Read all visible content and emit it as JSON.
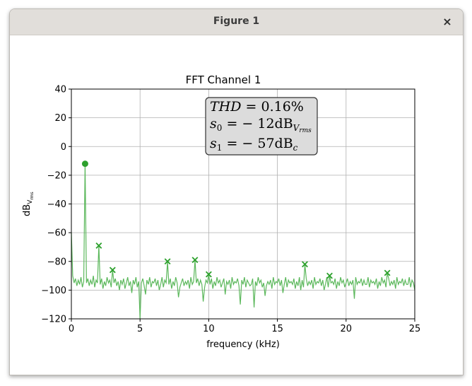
{
  "window": {
    "title": "Figure 1",
    "close_glyph": "×"
  },
  "annotation": {
    "line1_main": "THD",
    "line1_value": " = 0.16%",
    "line2_main": "s",
    "line2_sub": "0",
    "line2_value": " = − 12dB",
    "line2_unit_sub": "V",
    "line2_unit_subsub": "rms",
    "line3_main": "s",
    "line3_sub": "1",
    "line3_value": " = − 57dB",
    "line3_unit_sub": "c"
  },
  "chart_data": {
    "type": "line",
    "title": "FFT Channel 1",
    "xlabel": "frequency (kHz)",
    "ylabel_main": "dB",
    "ylabel_sub": "V",
    "ylabel_subsub": "rms",
    "xlim": [
      0,
      25
    ],
    "ylim": [
      -120,
      40
    ],
    "xticks": [
      0,
      5,
      10,
      15,
      20,
      25
    ],
    "yticks": [
      -120,
      -100,
      -80,
      -60,
      -40,
      -20,
      0,
      20,
      40
    ],
    "grid": true,
    "line_color": "#5cb85c",
    "marker_color": "#2ca02c",
    "fundamental": {
      "x": 1.0,
      "y": -12
    },
    "harmonics": [
      {
        "x": 2.0,
        "y": -69
      },
      {
        "x": 3.0,
        "y": -86
      },
      {
        "x": 7.0,
        "y": -80
      },
      {
        "x": 9.0,
        "y": -79
      },
      {
        "x": 10.0,
        "y": -89
      },
      {
        "x": 17.0,
        "y": -82
      },
      {
        "x": 18.8,
        "y": -90
      },
      {
        "x": 23.0,
        "y": -88
      }
    ],
    "spectrum": {
      "x": [
        0,
        0.1,
        0.2,
        0.3,
        0.4,
        0.5,
        0.6,
        0.7,
        0.8,
        0.9,
        1.0,
        1.1,
        1.2,
        1.3,
        1.4,
        1.5,
        1.6,
        1.7,
        1.8,
        1.9,
        2.0,
        2.1,
        2.2,
        2.3,
        2.4,
        2.5,
        2.6,
        2.7,
        2.8,
        2.9,
        3.0,
        3.1,
        3.2,
        3.3,
        3.4,
        3.5,
        3.6,
        3.7,
        3.8,
        3.9,
        4.0,
        4.1,
        4.2,
        4.3,
        4.4,
        4.5,
        4.6,
        4.7,
        4.8,
        4.9,
        5.0,
        5.1,
        5.2,
        5.3,
        5.4,
        5.5,
        5.6,
        5.7,
        5.8,
        5.9,
        6.0,
        6.1,
        6.2,
        6.3,
        6.4,
        6.5,
        6.6,
        6.7,
        6.8,
        6.9,
        7.0,
        7.1,
        7.2,
        7.3,
        7.4,
        7.5,
        7.6,
        7.7,
        7.8,
        7.9,
        8.0,
        8.1,
        8.2,
        8.3,
        8.4,
        8.5,
        8.6,
        8.7,
        8.8,
        8.9,
        9.0,
        9.1,
        9.2,
        9.3,
        9.4,
        9.5,
        9.6,
        9.7,
        9.8,
        9.9,
        10.0,
        10.1,
        10.2,
        10.3,
        10.4,
        10.5,
        10.6,
        10.7,
        10.8,
        10.9,
        11.0,
        11.1,
        11.2,
        11.3,
        11.4,
        11.5,
        11.6,
        11.7,
        11.8,
        11.9,
        12.0,
        12.1,
        12.2,
        12.3,
        12.4,
        12.5,
        12.6,
        12.7,
        12.8,
        12.9,
        13.0,
        13.1,
        13.2,
        13.3,
        13.4,
        13.5,
        13.6,
        13.7,
        13.8,
        13.9,
        14.0,
        14.1,
        14.2,
        14.3,
        14.4,
        14.5,
        14.6,
        14.7,
        14.8,
        14.9,
        15.0,
        15.1,
        15.2,
        15.3,
        15.4,
        15.5,
        15.6,
        15.7,
        15.8,
        15.9,
        16.0,
        16.1,
        16.2,
        16.3,
        16.4,
        16.5,
        16.6,
        16.7,
        16.8,
        16.9,
        17.0,
        17.1,
        17.2,
        17.3,
        17.4,
        17.5,
        17.6,
        17.7,
        17.8,
        17.9,
        18.0,
        18.1,
        18.2,
        18.3,
        18.4,
        18.5,
        18.6,
        18.7,
        18.8,
        18.9,
        19.0,
        19.1,
        19.2,
        19.3,
        19.4,
        19.5,
        19.6,
        19.7,
        19.8,
        19.9,
        20.0,
        20.1,
        20.2,
        20.3,
        20.4,
        20.5,
        20.6,
        20.7,
        20.8,
        20.9,
        21.0,
        21.1,
        21.2,
        21.3,
        21.4,
        21.5,
        21.6,
        21.7,
        21.8,
        21.9,
        22.0,
        22.1,
        22.2,
        22.3,
        22.4,
        22.5,
        22.6,
        22.7,
        22.8,
        22.9,
        23.0,
        23.1,
        23.2,
        23.3,
        23.4,
        23.5,
        23.6,
        23.7,
        23.8,
        23.9,
        24.0,
        24.1,
        24.2,
        24.3,
        24.4,
        24.5,
        24.6,
        24.7,
        24.8,
        24.9,
        25.0
      ],
      "y": [
        -60,
        -90,
        -95,
        -92,
        -97,
        -93,
        -96,
        -91,
        -98,
        -94,
        -12,
        -95,
        -92,
        -97,
        -93,
        -96,
        -90,
        -98,
        -93,
        -95,
        -69,
        -96,
        -92,
        -99,
        -94,
        -97,
        -91,
        -95,
        -93,
        -98,
        -86,
        -95,
        -92,
        -97,
        -94,
        -100,
        -93,
        -96,
        -92,
        -99,
        -95,
        -91,
        -97,
        -94,
        -102,
        -93,
        -96,
        -91,
        -98,
        -94,
        -120,
        -95,
        -92,
        -97,
        -103,
        -93,
        -96,
        -91,
        -98,
        -94,
        -95,
        -92,
        -97,
        -93,
        -100,
        -96,
        -91,
        -98,
        -93,
        -95,
        -80,
        -96,
        -92,
        -99,
        -94,
        -97,
        -91,
        -95,
        -105,
        -98,
        -95,
        -92,
        -97,
        -94,
        -96,
        -93,
        -99,
        -91,
        -96,
        -94,
        -79,
        -95,
        -92,
        -97,
        -93,
        -96,
        -108,
        -98,
        -93,
        -95,
        -89,
        -96,
        -92,
        -99,
        -94,
        -97,
        -91,
        -95,
        -93,
        -98,
        -95,
        -92,
        -103,
        -94,
        -96,
        -93,
        -99,
        -91,
        -96,
        -94,
        -95,
        -92,
        -97,
        -110,
        -93,
        -96,
        -91,
        -98,
        -93,
        -95,
        -97,
        -96,
        -92,
        -112,
        -94,
        -97,
        -91,
        -95,
        -93,
        -98,
        -95,
        -104,
        -97,
        -94,
        -96,
        -93,
        -99,
        -91,
        -96,
        -94,
        -95,
        -92,
        -97,
        -93,
        -102,
        -96,
        -91,
        -98,
        -93,
        -95,
        -94,
        -96,
        -92,
        -99,
        -94,
        -97,
        -91,
        -100,
        -93,
        -98,
        -82,
        -92,
        -97,
        -94,
        -96,
        -93,
        -99,
        -91,
        -96,
        -94,
        -95,
        -92,
        -97,
        -93,
        -100,
        -96,
        -91,
        -98,
        -90,
        -95,
        -94,
        -96,
        -92,
        -99,
        -94,
        -97,
        -91,
        -95,
        -93,
        -98,
        -95,
        -92,
        -97,
        -94,
        -96,
        -93,
        -106,
        -91,
        -96,
        -94,
        -95,
        -92,
        -97,
        -93,
        -96,
        -96,
        -91,
        -98,
        -93,
        -95,
        -94,
        -96,
        -92,
        -99,
        -94,
        -97,
        -91,
        -95,
        -93,
        -98,
        -88,
        -92,
        -97,
        -94,
        -96,
        -93,
        -99,
        -91,
        -96,
        -94,
        -95,
        -92,
        -97,
        -93,
        -96,
        -96,
        -91,
        -98,
        -93,
        -95,
        -100
      ]
    }
  }
}
